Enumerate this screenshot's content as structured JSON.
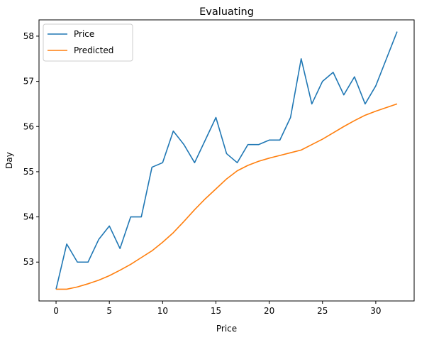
{
  "chart_data": {
    "type": "line",
    "title": "Evaluating",
    "xlabel": "Price",
    "ylabel": "Day",
    "xlim": [
      -1.6,
      33.6
    ],
    "ylim": [
      52.14,
      58.36
    ],
    "xticks": [
      0,
      5,
      10,
      15,
      20,
      25,
      30
    ],
    "yticks": [
      53,
      54,
      55,
      56,
      57,
      58
    ],
    "grid": false,
    "legend_placement": "upper-left",
    "x": [
      0,
      1,
      2,
      3,
      4,
      5,
      6,
      7,
      8,
      9,
      10,
      11,
      12,
      13,
      14,
      15,
      16,
      17,
      18,
      19,
      20,
      21,
      22,
      23,
      24,
      25,
      26,
      27,
      28,
      29,
      30,
      31,
      32
    ],
    "series": [
      {
        "name": "Price",
        "color": "#1f77b4",
        "values": [
          52.4,
          53.4,
          53.0,
          53.0,
          53.5,
          53.8,
          53.3,
          54.0,
          54.0,
          55.1,
          55.2,
          55.9,
          55.6,
          55.2,
          55.7,
          56.2,
          55.4,
          55.2,
          55.6,
          55.6,
          55.7,
          55.7,
          56.2,
          57.5,
          56.5,
          57.0,
          57.2,
          56.7,
          57.1,
          56.5,
          56.9,
          57.5,
          58.1
        ]
      },
      {
        "name": "Predicted",
        "color": "#ff7f0e",
        "values": [
          52.4,
          52.4,
          52.45,
          52.52,
          52.6,
          52.7,
          52.82,
          52.95,
          53.1,
          53.25,
          53.44,
          53.65,
          53.9,
          54.16,
          54.4,
          54.62,
          54.84,
          55.02,
          55.14,
          55.23,
          55.3,
          55.36,
          55.42,
          55.48,
          55.6,
          55.72,
          55.86,
          56.0,
          56.13,
          56.25,
          56.34,
          56.42,
          56.5
        ]
      }
    ]
  }
}
